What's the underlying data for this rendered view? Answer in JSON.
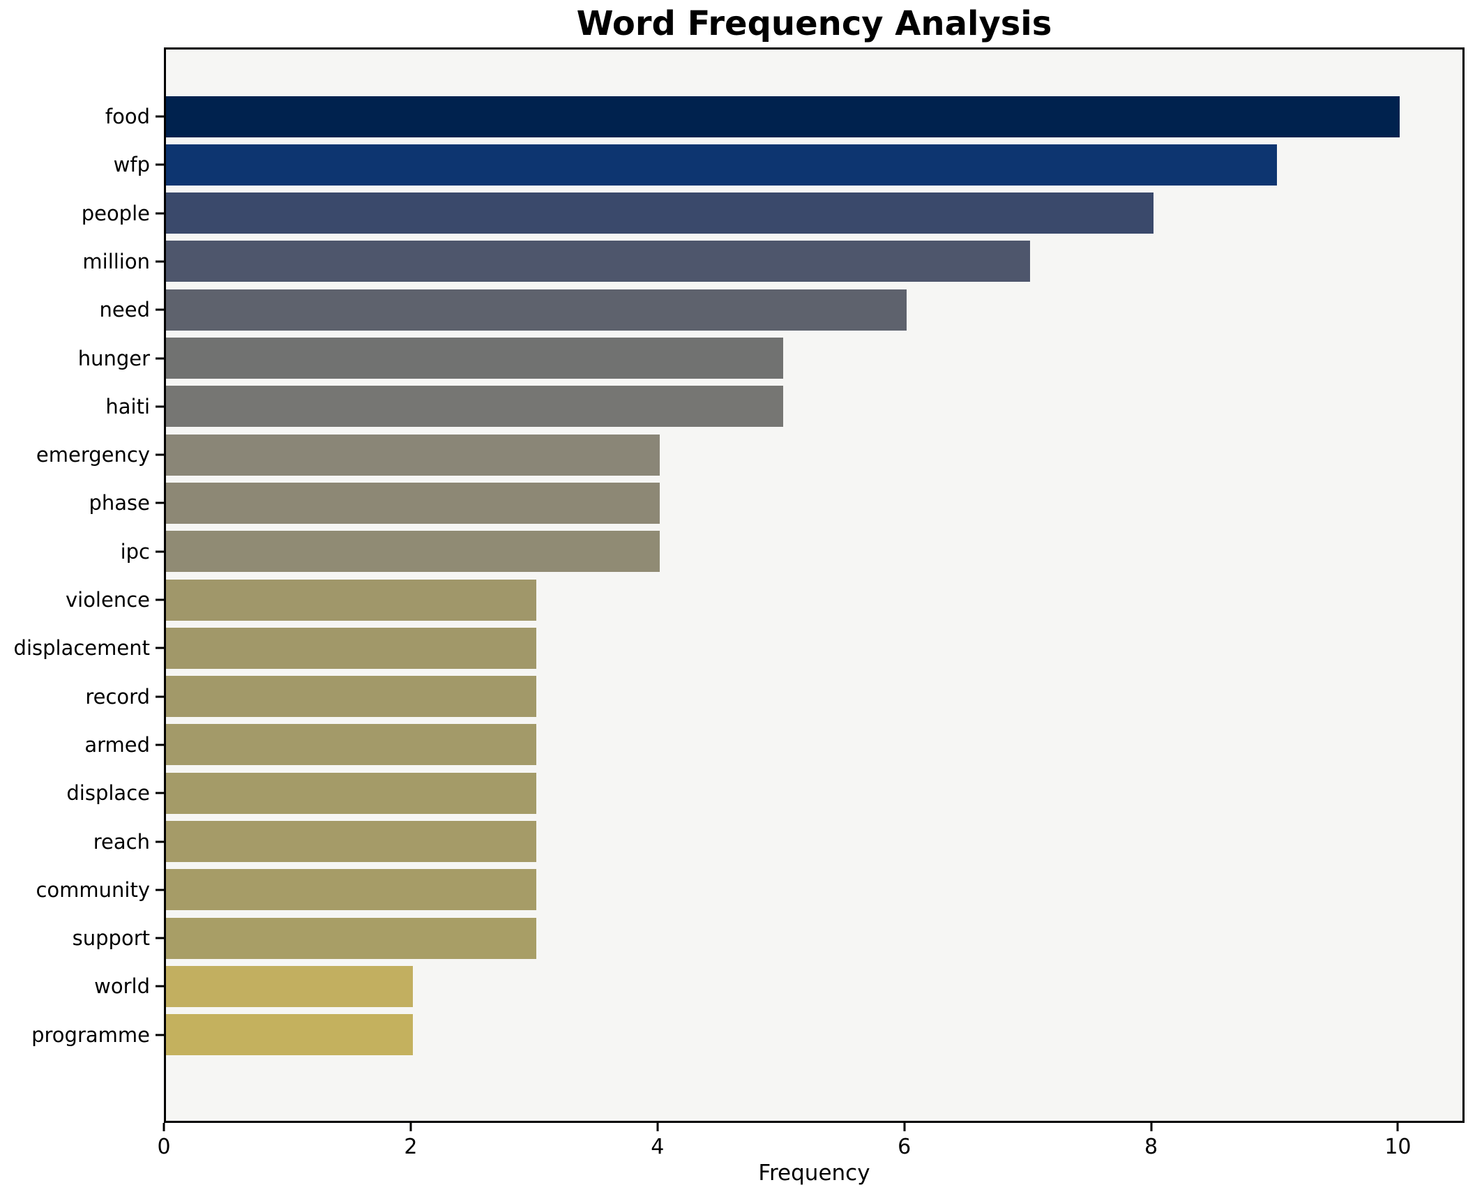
{
  "title": "Word Frequency Analysis",
  "chart_data": {
    "type": "bar",
    "orientation": "horizontal",
    "title": "Word Frequency Analysis",
    "xlabel": "Frequency",
    "ylabel": "",
    "categories": [
      "food",
      "wfp",
      "people",
      "million",
      "need",
      "hunger",
      "haiti",
      "emergency",
      "phase",
      "ipc",
      "violence",
      "displacement",
      "record",
      "armed",
      "displace",
      "reach",
      "community",
      "support",
      "world",
      "programme"
    ],
    "values": [
      10,
      9,
      8,
      7,
      6,
      5,
      5,
      4,
      4,
      4,
      3,
      3,
      3,
      3,
      3,
      3,
      3,
      3,
      2,
      2
    ],
    "bar_colors": [
      "#00224e",
      "#0d3570",
      "#3a496b",
      "#4e566c",
      "#5e626d",
      "#717271",
      "#767673",
      "#8a8677",
      "#8d8875",
      "#908b74",
      "#a0976a",
      "#a19869",
      "#a29969",
      "#a39a69",
      "#a49b68",
      "#a59b68",
      "#a69c67",
      "#a89e66",
      "#c2af60",
      "#c4b15e"
    ],
    "xticks": {
      "values": [
        0,
        2,
        4,
        6,
        8,
        10
      ],
      "labels": [
        "0",
        "2",
        "4",
        "6",
        "8",
        "10"
      ]
    },
    "xlim": [
      0,
      10.54
    ],
    "grid": false,
    "legend": false,
    "colormap": "cividis",
    "plot_background": "#f6f6f4",
    "figure_background": "#ffffff",
    "spine_color": "#000000",
    "text_color": "#000000"
  }
}
